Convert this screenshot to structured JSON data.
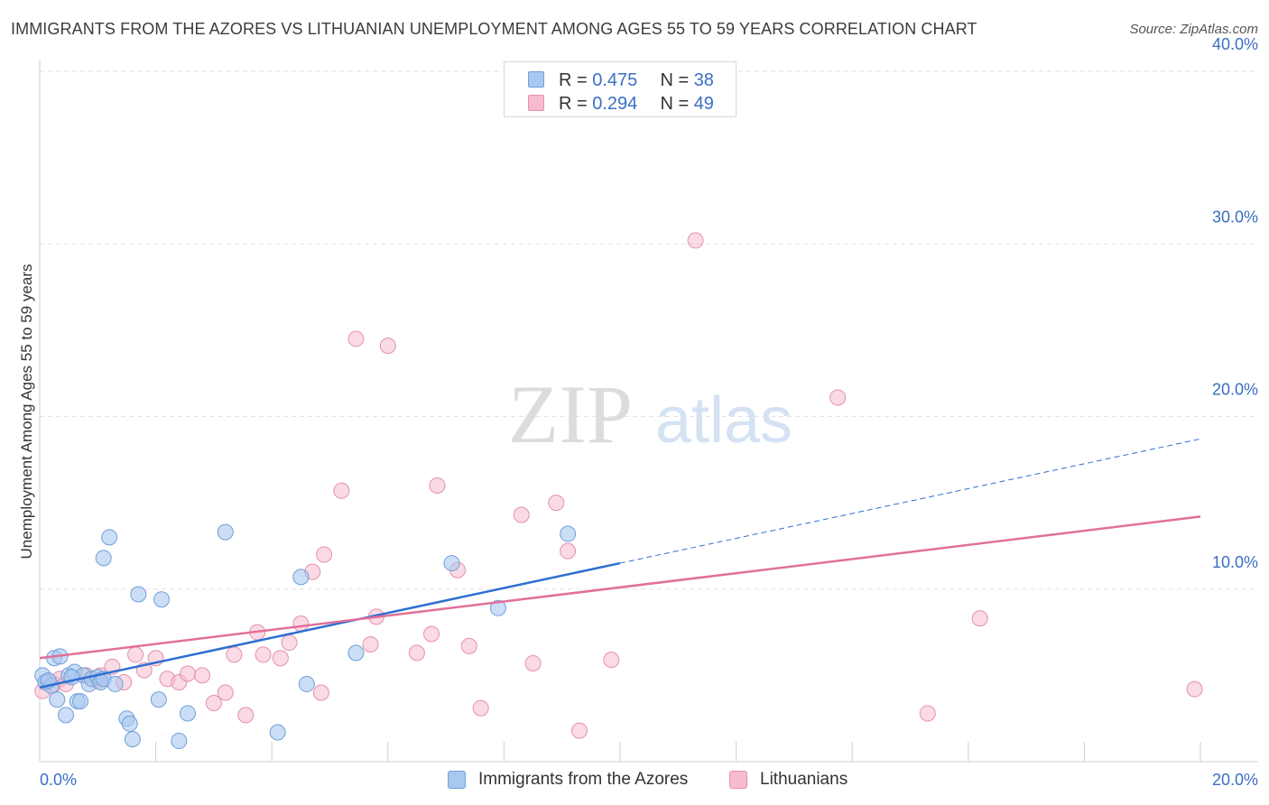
{
  "title": "IMMIGRANTS FROM THE AZORES VS LITHUANIAN UNEMPLOYMENT AMONG AGES 55 TO 59 YEARS CORRELATION CHART",
  "source": "Source: ZipAtlas.com",
  "watermark": {
    "zip": "ZIP",
    "atlas": "atlas"
  },
  "legend": {
    "series1": {
      "r_label": "R = ",
      "r_value": "0.475",
      "n_label": "N = ",
      "n_value": "38"
    },
    "series2": {
      "r_label": "R = ",
      "r_value": "0.294",
      "n_label": "N = ",
      "n_value": "49"
    }
  },
  "colors": {
    "blue_fill": "#a9c8f0",
    "blue_stroke": "#6f9fd8",
    "blue_line": "#2e6fd0",
    "pink_fill": "#f6bccd",
    "pink_stroke": "#e690ab",
    "pink_line": "#e0709a",
    "axis_text": "#3a6fc4",
    "grid": "#e2e2e2"
  },
  "chart_data": {
    "type": "scatter",
    "title": "IMMIGRANTS FROM THE AZORES VS LITHUANIAN UNEMPLOYMENT AMONG AGES 55 TO 59 YEARS CORRELATION CHART",
    "xlabel": "",
    "ylabel": "Unemployment Among Ages 55 to 59 years",
    "xlim": [
      0,
      20
    ],
    "ylim": [
      0,
      40
    ],
    "x_tick_labels": [
      "0.0%",
      "20.0%"
    ],
    "y_ticks": [
      10,
      20,
      30,
      40
    ],
    "y_tick_labels": [
      "10.0%",
      "20.0%",
      "30.0%",
      "40.0%"
    ],
    "grid": true,
    "series": [
      {
        "name": "Immigrants from the Azores",
        "color": "#a9c8f0",
        "points": [
          [
            0.05,
            5.0
          ],
          [
            0.1,
            4.6
          ],
          [
            0.2,
            4.4
          ],
          [
            0.25,
            6.0
          ],
          [
            0.3,
            3.6
          ],
          [
            0.35,
            6.1
          ],
          [
            0.45,
            2.7
          ],
          [
            0.5,
            5.0
          ],
          [
            0.6,
            5.2
          ],
          [
            0.65,
            3.5
          ],
          [
            0.7,
            3.5
          ],
          [
            0.75,
            5.0
          ],
          [
            0.85,
            4.5
          ],
          [
            0.9,
            4.8
          ],
          [
            1.0,
            4.9
          ],
          [
            1.05,
            4.6
          ],
          [
            1.1,
            4.8
          ],
          [
            1.1,
            11.8
          ],
          [
            1.2,
            13.0
          ],
          [
            1.3,
            4.5
          ],
          [
            1.5,
            2.5
          ],
          [
            1.55,
            2.2
          ],
          [
            1.6,
            1.3
          ],
          [
            1.7,
            9.7
          ],
          [
            2.05,
            3.6
          ],
          [
            2.1,
            9.4
          ],
          [
            2.4,
            1.2
          ],
          [
            2.55,
            2.8
          ],
          [
            3.2,
            13.3
          ],
          [
            4.1,
            1.7
          ],
          [
            4.5,
            10.7
          ],
          [
            4.6,
            4.5
          ],
          [
            5.45,
            6.3
          ],
          [
            7.1,
            11.5
          ],
          [
            7.9,
            8.9
          ],
          [
            9.1,
            13.2
          ],
          [
            0.15,
            4.7
          ],
          [
            0.55,
            4.9
          ]
        ],
        "trend": {
          "x0": 0,
          "y0": 4.3,
          "x1": 10,
          "y1": 11.5,
          "x_end": 20,
          "y_end": 18.7
        }
      },
      {
        "name": "Lithuanians",
        "color": "#f6bccd",
        "points": [
          [
            0.05,
            4.1
          ],
          [
            0.15,
            4.7
          ],
          [
            0.25,
            4.5
          ],
          [
            0.35,
            4.8
          ],
          [
            0.45,
            4.5
          ],
          [
            0.8,
            5.0
          ],
          [
            1.0,
            4.7
          ],
          [
            1.05,
            5.0
          ],
          [
            1.25,
            5.5
          ],
          [
            1.45,
            4.6
          ],
          [
            1.65,
            6.2
          ],
          [
            1.8,
            5.3
          ],
          [
            2.0,
            6.0
          ],
          [
            2.2,
            4.8
          ],
          [
            2.4,
            4.6
          ],
          [
            2.55,
            5.1
          ],
          [
            2.8,
            5.0
          ],
          [
            3.0,
            3.4
          ],
          [
            3.2,
            4.0
          ],
          [
            3.35,
            6.2
          ],
          [
            3.55,
            2.7
          ],
          [
            3.75,
            7.5
          ],
          [
            3.85,
            6.2
          ],
          [
            4.15,
            6.0
          ],
          [
            4.3,
            6.9
          ],
          [
            4.5,
            8.0
          ],
          [
            4.7,
            11.0
          ],
          [
            4.85,
            4.0
          ],
          [
            4.9,
            12.0
          ],
          [
            5.2,
            15.7
          ],
          [
            5.45,
            24.5
          ],
          [
            5.7,
            6.8
          ],
          [
            5.8,
            8.4
          ],
          [
            6.0,
            24.1
          ],
          [
            6.5,
            6.3
          ],
          [
            6.75,
            7.4
          ],
          [
            6.85,
            16.0
          ],
          [
            7.2,
            11.1
          ],
          [
            7.4,
            6.7
          ],
          [
            7.6,
            3.1
          ],
          [
            8.3,
            14.3
          ],
          [
            8.5,
            5.7
          ],
          [
            8.9,
            15.0
          ],
          [
            9.1,
            12.2
          ],
          [
            9.3,
            1.8
          ],
          [
            9.85,
            5.9
          ],
          [
            11.3,
            30.2
          ],
          [
            13.75,
            21.1
          ],
          [
            16.2,
            8.3
          ]
        ],
        "extra_points": [
          [
            15.3,
            2.8
          ],
          [
            19.9,
            4.2
          ]
        ],
        "trend": {
          "x0": 0,
          "y0": 6.0,
          "x1": 20,
          "y1": 14.2
        }
      }
    ]
  },
  "bottom_legend": {
    "item1": "Immigrants from the Azores",
    "item2": "Lithuanians"
  }
}
